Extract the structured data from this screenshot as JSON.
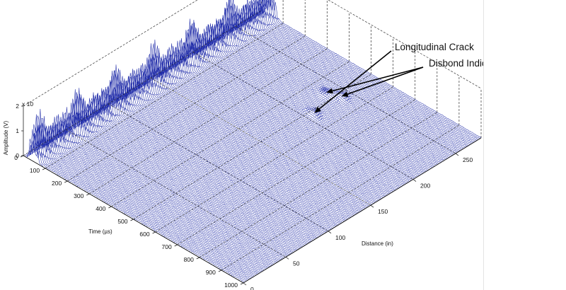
{
  "chart_data": {
    "type": "waterfall-3d",
    "title": "",
    "zlabel": "Amplitude (V)",
    "zscale_label": "x 10",
    "xlabel": "Time (µs)",
    "ylabel": "Distance (in)",
    "zticks": [
      "0",
      "1",
      "2"
    ],
    "zlim": [
      0,
      2
    ],
    "time_ticks": [
      "0",
      "100",
      "200",
      "300",
      "400",
      "500",
      "600",
      "700",
      "800",
      "900",
      "1000"
    ],
    "time_lim": [
      0,
      1000
    ],
    "distance_ticks": [
      "0",
      "50",
      "100",
      "150",
      "200",
      "250"
    ],
    "distance_lim": [
      0,
      280
    ],
    "line_color": "#1e2aa8",
    "grid": true,
    "annotations": [
      {
        "label": "Longitudinal Crack",
        "targets": [
          {
            "time": 520,
            "distance": 208
          }
        ]
      },
      {
        "label": "Disbond Indications",
        "targets": [
          {
            "time": 470,
            "distance": 235
          },
          {
            "time": 520,
            "distance": 240
          }
        ]
      }
    ]
  }
}
